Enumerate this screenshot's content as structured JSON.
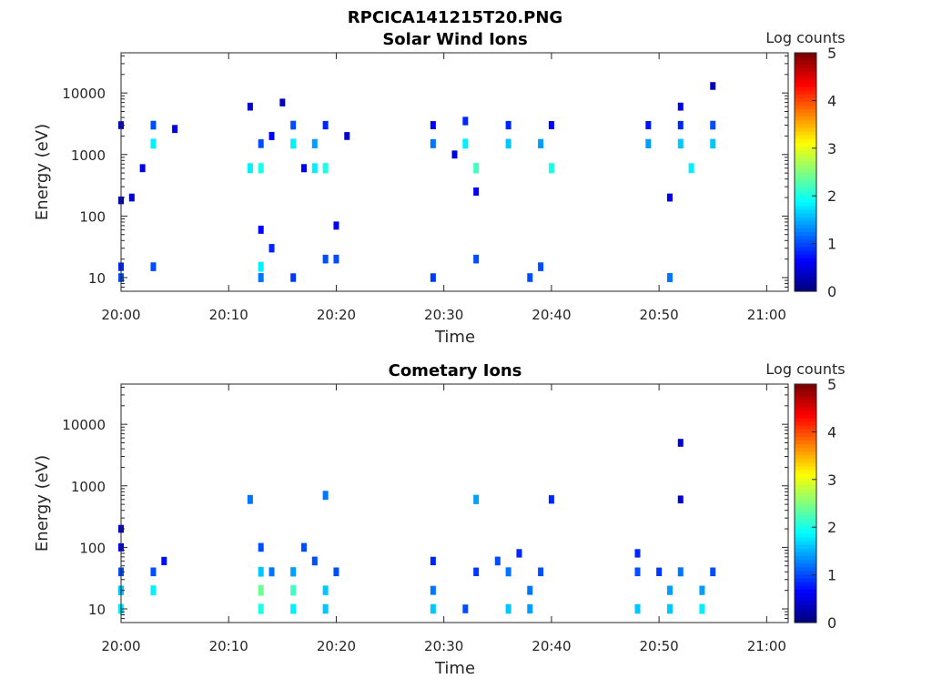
{
  "figure": {
    "title": "RPCICA141215T20.PNG"
  },
  "chart_data": [
    {
      "type": "heatmap",
      "title": "Solar Wind Ions",
      "xlabel": "Time",
      "ylabel": "Energy (eV)",
      "x_range": [
        "20:00",
        "21:02"
      ],
      "x_ticks": [
        "20:00",
        "20:10",
        "20:20",
        "20:30",
        "20:40",
        "20:50",
        "21:00"
      ],
      "y_scale": "log",
      "y_range": [
        6,
        45000
      ],
      "y_ticks": [
        "10",
        "100",
        "1000",
        "10000"
      ],
      "colorbar": {
        "label": "Log counts",
        "range": [
          0,
          5
        ],
        "ticks": [
          "0",
          "1",
          "2",
          "3",
          "4",
          "5"
        ],
        "colormap": "jet"
      },
      "values": [
        {
          "t": "20:00",
          "e": 10,
          "c": 1.0
        },
        {
          "t": "20:00",
          "e": 15,
          "c": 0.8
        },
        {
          "t": "20:00",
          "e": 180,
          "c": 0.3
        },
        {
          "t": "20:00",
          "e": 3000,
          "c": 0.4
        },
        {
          "t": "20:01",
          "e": 200,
          "c": 0.4
        },
        {
          "t": "20:02",
          "e": 600,
          "c": 0.5
        },
        {
          "t": "20:03",
          "e": 1500,
          "c": 1.8
        },
        {
          "t": "20:03",
          "e": 3000,
          "c": 1.0
        },
        {
          "t": "20:03",
          "e": 15,
          "c": 1.0
        },
        {
          "t": "20:05",
          "e": 2600,
          "c": 0.5
        },
        {
          "t": "20:12",
          "e": 6000,
          "c": 0.4
        },
        {
          "t": "20:12",
          "e": 600,
          "c": 1.8
        },
        {
          "t": "20:13",
          "e": 1500,
          "c": 1.0
        },
        {
          "t": "20:13",
          "e": 600,
          "c": 2.0
        },
        {
          "t": "20:13",
          "e": 15,
          "c": 1.8
        },
        {
          "t": "20:13",
          "e": 10,
          "c": 1.2
        },
        {
          "t": "20:13",
          "e": 60,
          "c": 0.6
        },
        {
          "t": "20:14",
          "e": 2000,
          "c": 0.6
        },
        {
          "t": "20:14",
          "e": 30,
          "c": 0.8
        },
        {
          "t": "20:15",
          "e": 7000,
          "c": 0.3
        },
        {
          "t": "20:16",
          "e": 1500,
          "c": 1.8
        },
        {
          "t": "20:16",
          "e": 3000,
          "c": 1.0
        },
        {
          "t": "20:16",
          "e": 10,
          "c": 0.9
        },
        {
          "t": "20:17",
          "e": 600,
          "c": 0.6
        },
        {
          "t": "20:18",
          "e": 600,
          "c": 1.8
        },
        {
          "t": "20:18",
          "e": 1500,
          "c": 1.4
        },
        {
          "t": "20:19",
          "e": 600,
          "c": 2.0
        },
        {
          "t": "20:19",
          "e": 20,
          "c": 1.0
        },
        {
          "t": "20:19",
          "e": 3000,
          "c": 0.8
        },
        {
          "t": "20:20",
          "e": 20,
          "c": 1.0
        },
        {
          "t": "20:20",
          "e": 70,
          "c": 0.6
        },
        {
          "t": "20:21",
          "e": 2000,
          "c": 0.4
        },
        {
          "t": "20:29",
          "e": 1500,
          "c": 1.2
        },
        {
          "t": "20:29",
          "e": 3000,
          "c": 0.6
        },
        {
          "t": "20:29",
          "e": 10,
          "c": 0.9
        },
        {
          "t": "20:31",
          "e": 1000,
          "c": 0.5
        },
        {
          "t": "20:32",
          "e": 1500,
          "c": 1.8
        },
        {
          "t": "20:32",
          "e": 3500,
          "c": 0.8
        },
        {
          "t": "20:33",
          "e": 600,
          "c": 2.2
        },
        {
          "t": "20:33",
          "e": 20,
          "c": 1.0
        },
        {
          "t": "20:33",
          "e": 250,
          "c": 0.6
        },
        {
          "t": "20:36",
          "e": 1500,
          "c": 1.6
        },
        {
          "t": "20:36",
          "e": 3000,
          "c": 0.8
        },
        {
          "t": "20:38",
          "e": 10,
          "c": 1.0
        },
        {
          "t": "20:39",
          "e": 1500,
          "c": 1.4
        },
        {
          "t": "20:39",
          "e": 15,
          "c": 1.0
        },
        {
          "t": "20:40",
          "e": 600,
          "c": 2.0
        },
        {
          "t": "20:40",
          "e": 3000,
          "c": 0.6
        },
        {
          "t": "20:49",
          "e": 1500,
          "c": 1.4
        },
        {
          "t": "20:49",
          "e": 3000,
          "c": 0.7
        },
        {
          "t": "20:51",
          "e": 10,
          "c": 1.2
        },
        {
          "t": "20:51",
          "e": 200,
          "c": 0.5
        },
        {
          "t": "20:52",
          "e": 1500,
          "c": 1.6
        },
        {
          "t": "20:52",
          "e": 3000,
          "c": 0.8
        },
        {
          "t": "20:52",
          "e": 6000,
          "c": 0.5
        },
        {
          "t": "20:53",
          "e": 600,
          "c": 1.8
        },
        {
          "t": "20:55",
          "e": 1500,
          "c": 1.6
        },
        {
          "t": "20:55",
          "e": 3000,
          "c": 1.0
        },
        {
          "t": "20:55",
          "e": 13000,
          "c": 0.3
        }
      ]
    },
    {
      "type": "heatmap",
      "title": "Cometary Ions",
      "xlabel": "Time",
      "ylabel": "Energy (eV)",
      "x_range": [
        "20:00",
        "21:02"
      ],
      "x_ticks": [
        "20:00",
        "20:10",
        "20:20",
        "20:30",
        "20:40",
        "20:50",
        "21:00"
      ],
      "y_scale": "log",
      "y_range": [
        6,
        45000
      ],
      "y_ticks": [
        "10",
        "100",
        "1000",
        "10000"
      ],
      "colorbar": {
        "label": "Log counts",
        "range": [
          0,
          5
        ],
        "ticks": [
          "0",
          "1",
          "2",
          "3",
          "4",
          "5"
        ],
        "colormap": "jet"
      },
      "values": [
        {
          "t": "20:00",
          "e": 10,
          "c": 1.8
        },
        {
          "t": "20:00",
          "e": 20,
          "c": 1.6
        },
        {
          "t": "20:00",
          "e": 40,
          "c": 1.0
        },
        {
          "t": "20:00",
          "e": 100,
          "c": 0.6
        },
        {
          "t": "20:00",
          "e": 200,
          "c": 0.4
        },
        {
          "t": "20:03",
          "e": 20,
          "c": 1.8
        },
        {
          "t": "20:03",
          "e": 40,
          "c": 1.0
        },
        {
          "t": "20:04",
          "e": 60,
          "c": 0.7
        },
        {
          "t": "20:12",
          "e": 600,
          "c": 1.2
        },
        {
          "t": "20:13",
          "e": 10,
          "c": 2.0
        },
        {
          "t": "20:13",
          "e": 20,
          "c": 2.4
        },
        {
          "t": "20:13",
          "e": 40,
          "c": 1.6
        },
        {
          "t": "20:13",
          "e": 100,
          "c": 1.0
        },
        {
          "t": "20:14",
          "e": 40,
          "c": 1.2
        },
        {
          "t": "20:16",
          "e": 10,
          "c": 1.8
        },
        {
          "t": "20:16",
          "e": 20,
          "c": 2.2
        },
        {
          "t": "20:16",
          "e": 40,
          "c": 1.4
        },
        {
          "t": "20:17",
          "e": 100,
          "c": 1.0
        },
        {
          "t": "20:18",
          "e": 60,
          "c": 1.0
        },
        {
          "t": "20:19",
          "e": 700,
          "c": 1.2
        },
        {
          "t": "20:19",
          "e": 10,
          "c": 1.6
        },
        {
          "t": "20:19",
          "e": 20,
          "c": 1.6
        },
        {
          "t": "20:20",
          "e": 40,
          "c": 1.0
        },
        {
          "t": "20:29",
          "e": 10,
          "c": 1.6
        },
        {
          "t": "20:29",
          "e": 20,
          "c": 1.2
        },
        {
          "t": "20:29",
          "e": 60,
          "c": 0.8
        },
        {
          "t": "20:32",
          "e": 10,
          "c": 1.0
        },
        {
          "t": "20:33",
          "e": 40,
          "c": 0.9
        },
        {
          "t": "20:33",
          "e": 600,
          "c": 1.4
        },
        {
          "t": "20:35",
          "e": 60,
          "c": 1.0
        },
        {
          "t": "20:36",
          "e": 40,
          "c": 1.2
        },
        {
          "t": "20:36",
          "e": 10,
          "c": 1.6
        },
        {
          "t": "20:37",
          "e": 80,
          "c": 0.8
        },
        {
          "t": "20:38",
          "e": 10,
          "c": 1.4
        },
        {
          "t": "20:38",
          "e": 20,
          "c": 1.2
        },
        {
          "t": "20:39",
          "e": 40,
          "c": 1.0
        },
        {
          "t": "20:40",
          "e": 600,
          "c": 0.8
        },
        {
          "t": "20:48",
          "e": 10,
          "c": 1.6
        },
        {
          "t": "20:48",
          "e": 40,
          "c": 1.0
        },
        {
          "t": "20:48",
          "e": 80,
          "c": 0.8
        },
        {
          "t": "20:50",
          "e": 40,
          "c": 0.9
        },
        {
          "t": "20:51",
          "e": 10,
          "c": 1.6
        },
        {
          "t": "20:51",
          "e": 20,
          "c": 1.4
        },
        {
          "t": "20:52",
          "e": 40,
          "c": 1.2
        },
        {
          "t": "20:52",
          "e": 5000,
          "c": 0.4
        },
        {
          "t": "20:52",
          "e": 600,
          "c": 0.4
        },
        {
          "t": "20:54",
          "e": 10,
          "c": 1.8
        },
        {
          "t": "20:54",
          "e": 20,
          "c": 1.4
        },
        {
          "t": "20:55",
          "e": 40,
          "c": 1.0
        }
      ]
    }
  ]
}
